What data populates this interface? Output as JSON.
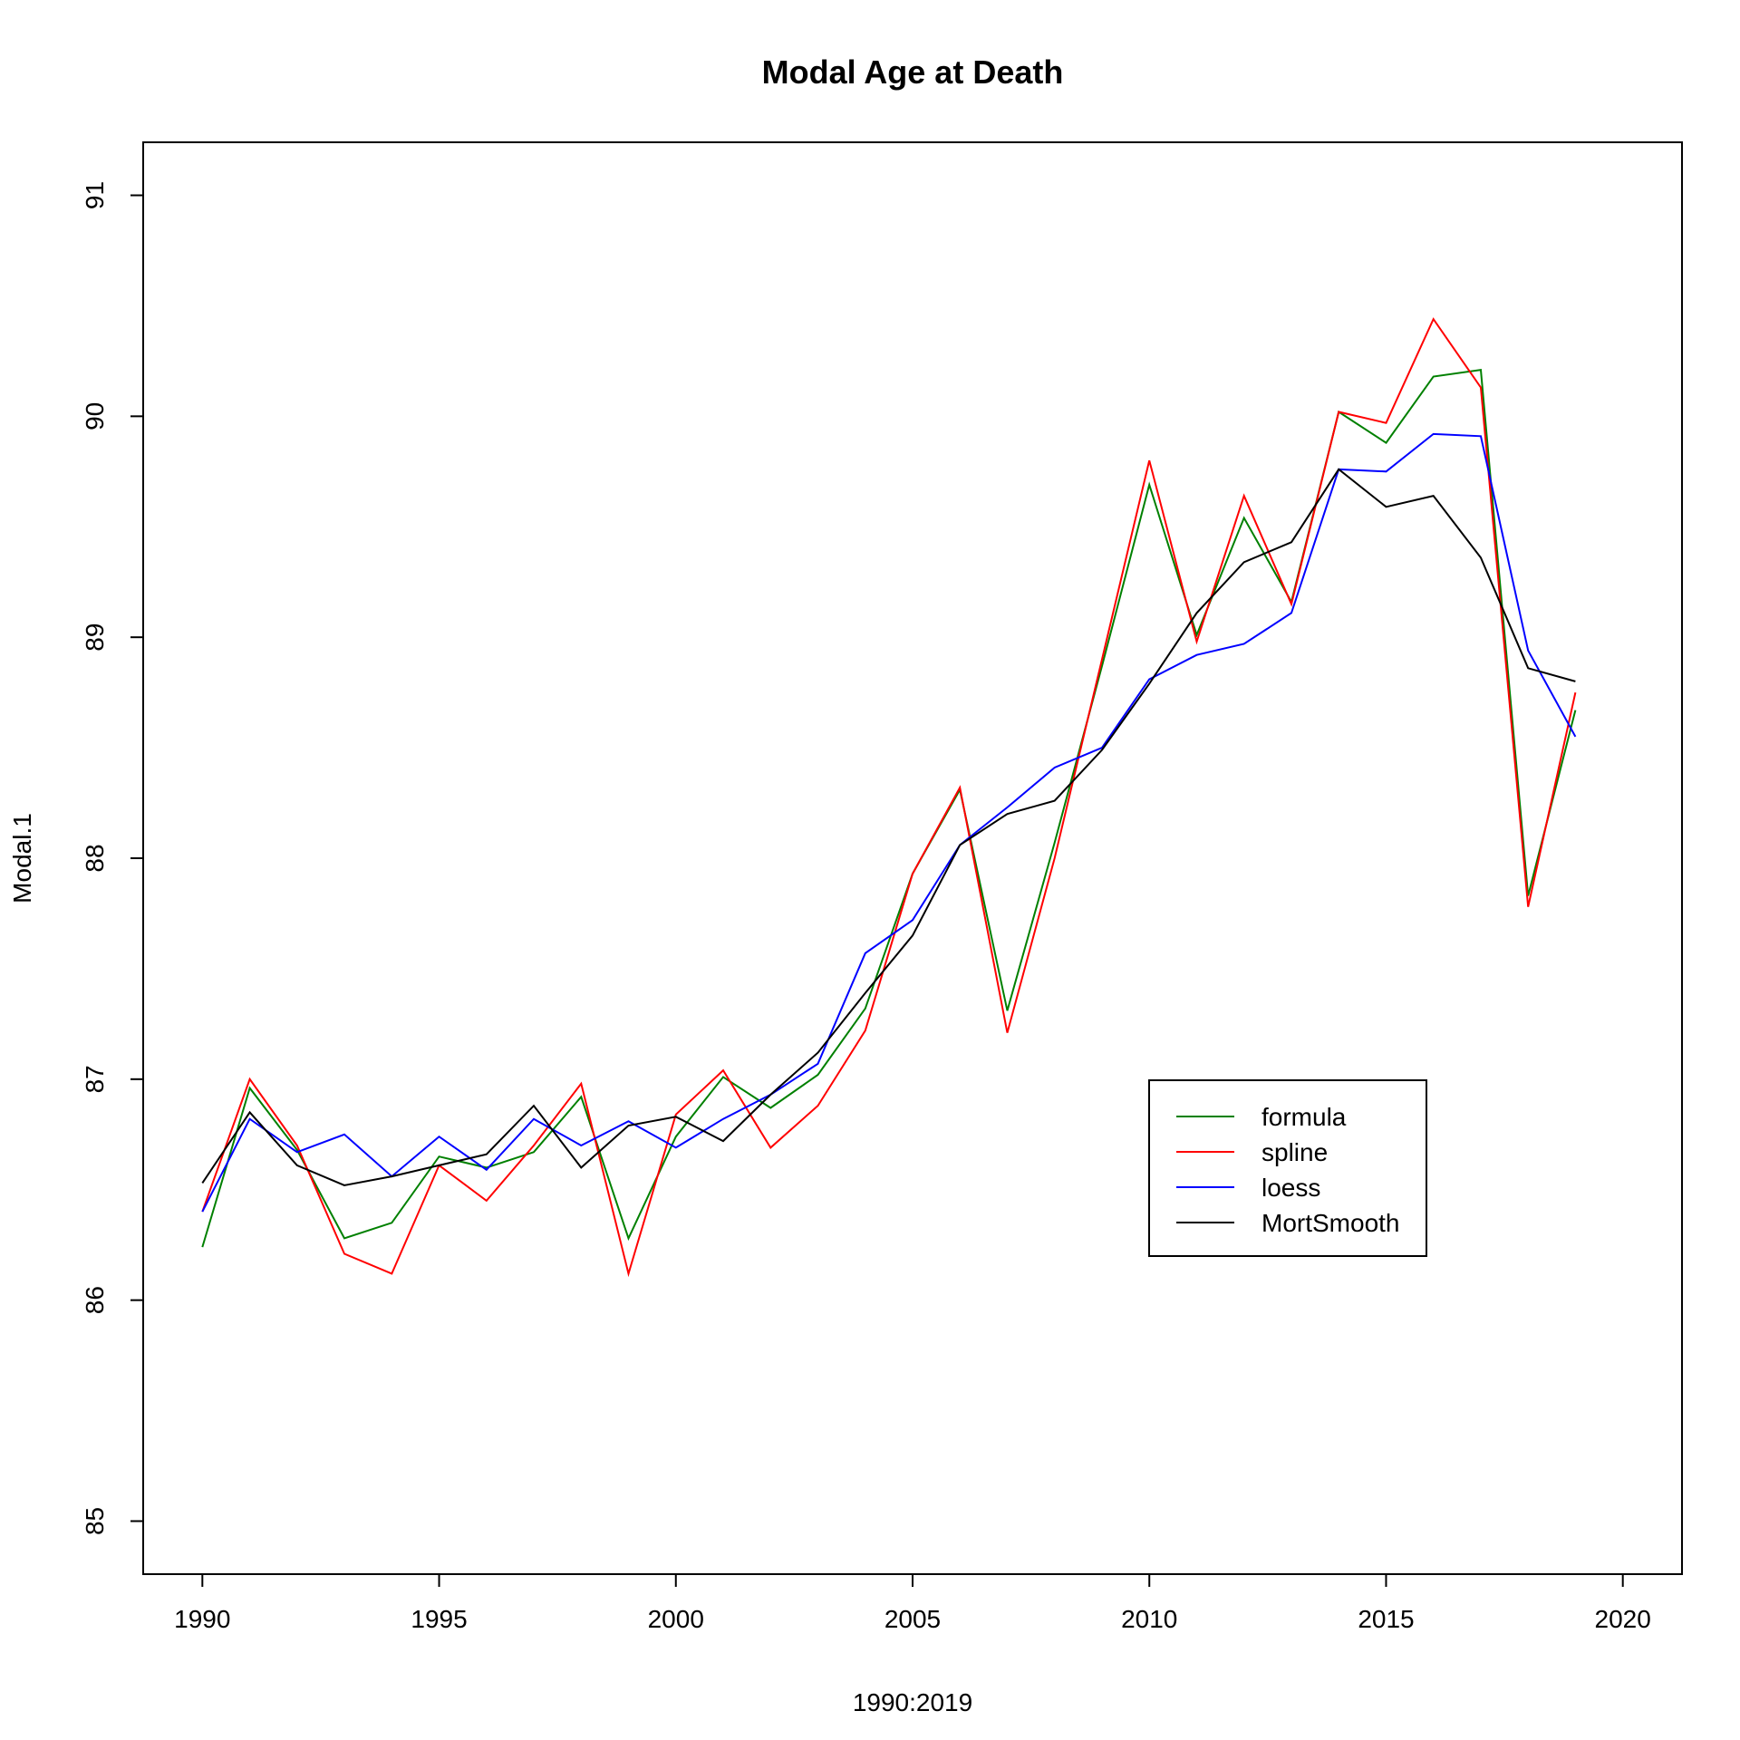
{
  "chart_data": {
    "type": "line",
    "title": "Modal Age at Death",
    "xlabel": "1990:2019",
    "ylabel": "Modal.1",
    "xlim": [
      1988.75,
      2021.25
    ],
    "ylim": [
      84.76,
      91.24
    ],
    "x_ticks": [
      1990,
      1995,
      2000,
      2005,
      2010,
      2015,
      2020
    ],
    "y_ticks": [
      85,
      86,
      87,
      88,
      89,
      90,
      91
    ],
    "x_tick_labels": [
      "1990",
      "1995",
      "2000",
      "2005",
      "2010",
      "2015",
      "2020"
    ],
    "y_tick_labels": [
      "85",
      "86",
      "87",
      "88",
      "89",
      "90",
      "91"
    ],
    "grid": false,
    "legend_position": "right",
    "x": [
      1990,
      1991,
      1992,
      1993,
      1994,
      1995,
      1996,
      1997,
      1998,
      1999,
      2000,
      2001,
      2002,
      2003,
      2004,
      2005,
      2006,
      2007,
      2008,
      2009,
      2010,
      2011,
      2012,
      2013,
      2014,
      2015,
      2016,
      2017,
      2018,
      2019
    ],
    "series": [
      {
        "name": "formula",
        "color": "#008000",
        "values": [
          86.24,
          86.96,
          86.68,
          86.28,
          86.35,
          86.65,
          86.6,
          86.67,
          86.92,
          86.28,
          86.74,
          87.01,
          86.87,
          87.02,
          87.32,
          87.93,
          88.31,
          87.31,
          88.07,
          88.87,
          89.69,
          89.01,
          89.54,
          89.16,
          90.02,
          89.88,
          90.18,
          90.21,
          87.83,
          88.67
        ]
      },
      {
        "name": "spline",
        "color": "#ff0000",
        "values": [
          86.4,
          87.0,
          86.7,
          86.21,
          86.12,
          86.61,
          86.45,
          86.7,
          86.98,
          86.12,
          86.84,
          87.04,
          86.69,
          86.88,
          87.22,
          87.93,
          88.32,
          87.21,
          88.0,
          88.9,
          89.8,
          88.98,
          89.64,
          89.15,
          90.02,
          89.97,
          90.44,
          90.13,
          87.78,
          88.75
        ]
      },
      {
        "name": "loess",
        "color": "#0000ff",
        "values": [
          86.4,
          86.82,
          86.67,
          86.75,
          86.56,
          86.74,
          86.59,
          86.82,
          86.7,
          86.81,
          86.69,
          86.82,
          86.93,
          87.07,
          87.57,
          87.72,
          88.06,
          88.23,
          88.41,
          88.5,
          88.81,
          88.92,
          88.97,
          89.11,
          89.76,
          89.75,
          89.92,
          89.91,
          88.94,
          88.55
        ]
      },
      {
        "name": "MortSmooth",
        "color": "#000000",
        "values": [
          86.53,
          86.85,
          86.61,
          86.52,
          86.56,
          86.61,
          86.66,
          86.88,
          86.6,
          86.79,
          86.83,
          86.72,
          86.93,
          87.12,
          87.39,
          87.65,
          88.06,
          88.2,
          88.26,
          88.49,
          88.79,
          89.11,
          89.34,
          89.43,
          89.76,
          89.59,
          89.64,
          89.36,
          88.86,
          88.8
        ]
      }
    ]
  }
}
